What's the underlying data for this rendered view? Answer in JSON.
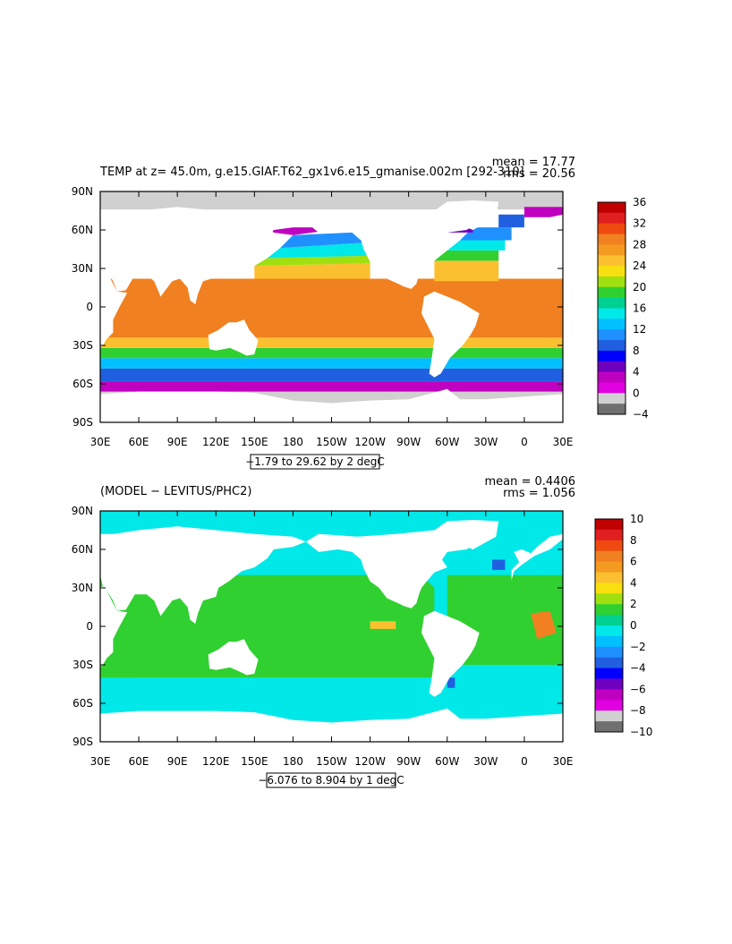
{
  "chart_data": [
    {
      "type": "heatmap",
      "title": "TEMP at z=  45.0m, g.e15.GIAF.T62_gx1v6.e15_gmanise.002m [292-310]",
      "stats": [
        "mean = 17.77",
        "rms = 20.56"
      ],
      "xticks": [
        "30E",
        "60E",
        "90E",
        "120E",
        "150E",
        "180",
        "150W",
        "120W",
        "90W",
        "60W",
        "30W",
        "0",
        "30E"
      ],
      "yticks": [
        "90N",
        "60N",
        "30N",
        "0",
        "30S",
        "60S",
        "90S"
      ],
      "lat_values": [
        90,
        60,
        30,
        0,
        -30,
        -60,
        -90
      ],
      "lon_values": [
        30,
        60,
        90,
        120,
        150,
        180,
        210,
        240,
        270,
        300,
        330,
        360,
        390
      ],
      "range_label": "−1.79 to 29.62 by 2 degC",
      "colorbar": {
        "labels": [
          "36",
          "32",
          "28",
          "24",
          "20",
          "16",
          "12",
          "8",
          "4",
          "0",
          "−4"
        ],
        "colors": [
          "#c00000",
          "#e02020",
          "#ef4b10",
          "#f08020",
          "#f59a20",
          "#fbc030",
          "#f8e010",
          "#a0e010",
          "#30d030",
          "#00d090",
          "#00e8e8",
          "#00c0ff",
          "#2090ff",
          "#2060e0",
          "#0000ff",
          "#7000c0",
          "#c000c0",
          "#e000e0",
          "#d0d0d0",
          "#707070"
        ]
      }
    },
    {
      "type": "heatmap",
      "title": "(MODEL − LEVITUS/PHC2)",
      "stats": [
        "mean = 0.4406",
        "rms = 1.056"
      ],
      "xticks": [
        "30E",
        "60E",
        "90E",
        "120E",
        "150E",
        "180",
        "150W",
        "120W",
        "90W",
        "60W",
        "30W",
        "0",
        "30E"
      ],
      "yticks": [
        "90N",
        "60N",
        "30N",
        "0",
        "30S",
        "60S",
        "90S"
      ],
      "lat_values": [
        90,
        60,
        30,
        0,
        -30,
        -60,
        -90
      ],
      "lon_values": [
        30,
        60,
        90,
        120,
        150,
        180,
        210,
        240,
        270,
        300,
        330,
        360,
        390
      ],
      "range_label": "−6.076 to 8.904 by 1 degC",
      "colorbar": {
        "labels": [
          "10",
          "8",
          "6",
          "4",
          "2",
          "0",
          "−2",
          "−4",
          "−6",
          "−8",
          "−10"
        ],
        "colors": [
          "#c00000",
          "#e02020",
          "#ef4b10",
          "#f08020",
          "#f59a20",
          "#fbc030",
          "#f8e010",
          "#a0e010",
          "#30d030",
          "#00d090",
          "#00e8e8",
          "#00c0ff",
          "#2090ff",
          "#2060e0",
          "#0000ff",
          "#7000c0",
          "#c000c0",
          "#e000e0",
          "#d0d0d0",
          "#707070"
        ]
      }
    }
  ]
}
